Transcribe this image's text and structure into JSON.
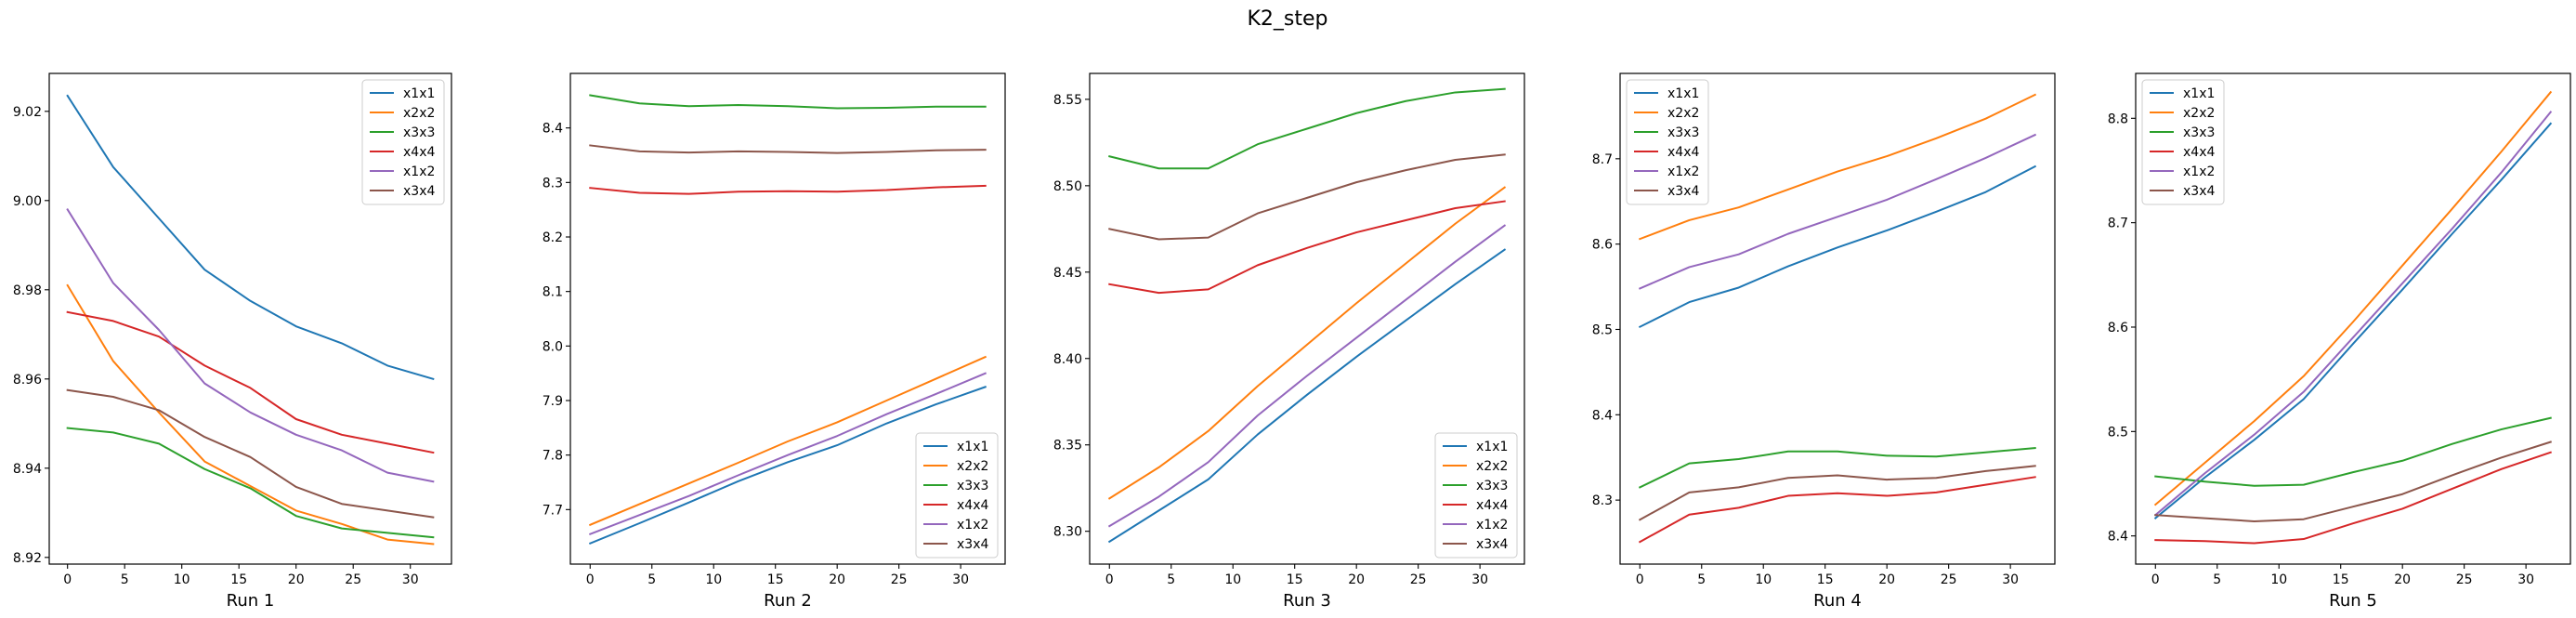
{
  "title": "K2_step",
  "chart_data": [
    {
      "type": "line",
      "xlabel": "Run 1",
      "x": [
        0,
        4,
        8,
        12,
        16,
        20,
        24,
        28,
        32
      ],
      "xticks": [
        0,
        5,
        10,
        15,
        20,
        25,
        30
      ],
      "xlim": [
        -1.6,
        33.6
      ],
      "ylim": [
        8.9185,
        9.0285
      ],
      "yticks": [
        8.92,
        8.94,
        8.96,
        8.98,
        9.0,
        9.02
      ],
      "ytick_decimals": 2,
      "legend": "upper-right",
      "series": [
        {
          "name": "x1x1",
          "values": [
            9.0235,
            9.0075,
            8.996,
            8.9845,
            8.9775,
            8.9718,
            8.968,
            8.963,
            8.96
          ]
        },
        {
          "name": "x2x2",
          "values": [
            8.981,
            8.964,
            8.9525,
            8.9415,
            8.936,
            8.9305,
            8.9275,
            8.924,
            8.923
          ]
        },
        {
          "name": "x3x3",
          "values": [
            8.949,
            8.948,
            8.9455,
            8.9398,
            8.9355,
            8.9293,
            8.9265,
            8.9255,
            8.9245
          ]
        },
        {
          "name": "x4x4",
          "values": [
            8.975,
            8.973,
            8.9695,
            8.963,
            8.958,
            8.951,
            8.9475,
            8.9455,
            8.9435
          ]
        },
        {
          "name": "x1x2",
          "values": [
            8.998,
            8.9815,
            8.971,
            8.959,
            8.9525,
            8.9475,
            8.944,
            8.939,
            8.937
          ]
        },
        {
          "name": "x3x4",
          "values": [
            8.9575,
            8.956,
            8.953,
            8.947,
            8.9425,
            8.9358,
            8.932,
            8.9305,
            8.929
          ]
        }
      ]
    },
    {
      "type": "line",
      "xlabel": "Run 2",
      "x": [
        0,
        4,
        8,
        12,
        16,
        20,
        24,
        28,
        32
      ],
      "xticks": [
        0,
        5,
        10,
        15,
        20,
        25,
        30
      ],
      "xlim": [
        -1.6,
        33.6
      ],
      "ylim": [
        7.6,
        8.5
      ],
      "yticks": [
        7.7,
        7.8,
        7.9,
        8.0,
        8.1,
        8.2,
        8.3,
        8.4
      ],
      "ytick_decimals": 1,
      "legend": "lower-right",
      "series": [
        {
          "name": "x1x1",
          "values": [
            7.638,
            7.675,
            7.713,
            7.752,
            7.787,
            7.818,
            7.858,
            7.893,
            7.925
          ]
        },
        {
          "name": "x2x2",
          "values": [
            7.672,
            7.71,
            7.748,
            7.786,
            7.825,
            7.86,
            7.9,
            7.94,
            7.98
          ]
        },
        {
          "name": "x3x3",
          "values": [
            8.46,
            8.445,
            8.44,
            8.442,
            8.44,
            8.436,
            8.437,
            8.439,
            8.439
          ]
        },
        {
          "name": "x4x4",
          "values": [
            8.29,
            8.281,
            8.279,
            8.283,
            8.284,
            8.283,
            8.286,
            8.291,
            8.294
          ]
        },
        {
          "name": "x1x2",
          "values": [
            7.655,
            7.69,
            7.725,
            7.763,
            7.8,
            7.835,
            7.875,
            7.912,
            7.95
          ]
        },
        {
          "name": "x3x4",
          "values": [
            8.368,
            8.357,
            8.355,
            8.357,
            8.356,
            8.354,
            8.356,
            8.359,
            8.36
          ]
        }
      ]
    },
    {
      "type": "line",
      "xlabel": "Run 3",
      "x": [
        0,
        4,
        8,
        12,
        16,
        20,
        24,
        28,
        32
      ],
      "xticks": [
        0,
        5,
        10,
        15,
        20,
        25,
        30
      ],
      "xlim": [
        -1.6,
        33.6
      ],
      "ylim": [
        8.281,
        8.565
      ],
      "yticks": [
        8.3,
        8.35,
        8.4,
        8.45,
        8.5,
        8.55
      ],
      "ytick_decimals": 2,
      "legend": "lower-right",
      "series": [
        {
          "name": "x1x1",
          "values": [
            8.294,
            8.312,
            8.33,
            8.356,
            8.379,
            8.401,
            8.422,
            8.443,
            8.463
          ]
        },
        {
          "name": "x2x2",
          "values": [
            8.319,
            8.337,
            8.358,
            8.384,
            8.408,
            8.432,
            8.455,
            8.478,
            8.499
          ]
        },
        {
          "name": "x3x3",
          "values": [
            8.517,
            8.51,
            8.51,
            8.524,
            8.533,
            8.542,
            8.549,
            8.554,
            8.556
          ]
        },
        {
          "name": "x4x4",
          "values": [
            8.443,
            8.438,
            8.44,
            8.454,
            8.464,
            8.473,
            8.48,
            8.487,
            8.491
          ]
        },
        {
          "name": "x1x2",
          "values": [
            8.303,
            8.32,
            8.34,
            8.367,
            8.39,
            8.412,
            8.434,
            8.456,
            8.477
          ]
        },
        {
          "name": "x3x4",
          "values": [
            8.475,
            8.469,
            8.47,
            8.484,
            8.493,
            8.502,
            8.509,
            8.515,
            8.518
          ]
        }
      ]
    },
    {
      "type": "line",
      "xlabel": "Run 4",
      "x": [
        0,
        4,
        8,
        12,
        16,
        20,
        24,
        28,
        32
      ],
      "xticks": [
        0,
        5,
        10,
        15,
        20,
        25,
        30
      ],
      "xlim": [
        -1.6,
        33.6
      ],
      "ylim": [
        8.225,
        8.8
      ],
      "yticks": [
        8.3,
        8.4,
        8.5,
        8.6,
        8.7
      ],
      "ytick_decimals": 1,
      "legend": "upper-left",
      "series": [
        {
          "name": "x1x1",
          "values": [
            8.503,
            8.532,
            8.549,
            8.574,
            8.596,
            8.616,
            8.638,
            8.661,
            8.691
          ]
        },
        {
          "name": "x2x2",
          "values": [
            8.606,
            8.628,
            8.643,
            8.664,
            8.685,
            8.703,
            8.724,
            8.747,
            8.775
          ]
        },
        {
          "name": "x3x3",
          "values": [
            8.315,
            8.343,
            8.348,
            8.357,
            8.357,
            8.352,
            8.351,
            8.356,
            8.361
          ]
        },
        {
          "name": "x4x4",
          "values": [
            8.251,
            8.283,
            8.291,
            8.305,
            8.308,
            8.305,
            8.309,
            8.318,
            8.327
          ]
        },
        {
          "name": "x1x2",
          "values": [
            8.548,
            8.573,
            8.588,
            8.612,
            8.632,
            8.652,
            8.676,
            8.701,
            8.728
          ]
        },
        {
          "name": "x3x4",
          "values": [
            8.277,
            8.309,
            8.315,
            8.326,
            8.329,
            8.324,
            8.326,
            8.334,
            8.34
          ]
        }
      ]
    },
    {
      "type": "line",
      "xlabel": "Run 5",
      "x": [
        0,
        4,
        8,
        12,
        16,
        20,
        24,
        28,
        32
      ],
      "xticks": [
        0,
        5,
        10,
        15,
        20,
        25,
        30
      ],
      "xlim": [
        -1.6,
        33.6
      ],
      "ylim": [
        8.373,
        8.843
      ],
      "yticks": [
        8.4,
        8.5,
        8.6,
        8.7,
        8.8
      ],
      "ytick_decimals": 1,
      "legend": "upper-left",
      "series": [
        {
          "name": "x1x1",
          "values": [
            8.417,
            8.456,
            8.492,
            8.531,
            8.584,
            8.636,
            8.689,
            8.741,
            8.795
          ]
        },
        {
          "name": "x2x2",
          "values": [
            8.43,
            8.47,
            8.51,
            8.553,
            8.605,
            8.659,
            8.713,
            8.768,
            8.825
          ]
        },
        {
          "name": "x3x3",
          "values": [
            8.457,
            8.452,
            8.448,
            8.449,
            8.461,
            8.472,
            8.488,
            8.502,
            8.513
          ]
        },
        {
          "name": "x4x4",
          "values": [
            8.396,
            8.395,
            8.393,
            8.397,
            8.412,
            8.426,
            8.445,
            8.464,
            8.48
          ]
        },
        {
          "name": "x1x2",
          "values": [
            8.42,
            8.46,
            8.497,
            8.538,
            8.59,
            8.642,
            8.694,
            8.748,
            8.806
          ]
        },
        {
          "name": "x3x4",
          "values": [
            8.42,
            8.417,
            8.414,
            8.416,
            8.428,
            8.44,
            8.458,
            8.475,
            8.49
          ]
        }
      ]
    }
  ],
  "colors": {
    "x1x1": "#1f77b4",
    "x2x2": "#ff7f0e",
    "x3x3": "#2ca02c",
    "x4x4": "#d62728",
    "x1x2": "#9467bd",
    "x3x4": "#8c564b"
  }
}
